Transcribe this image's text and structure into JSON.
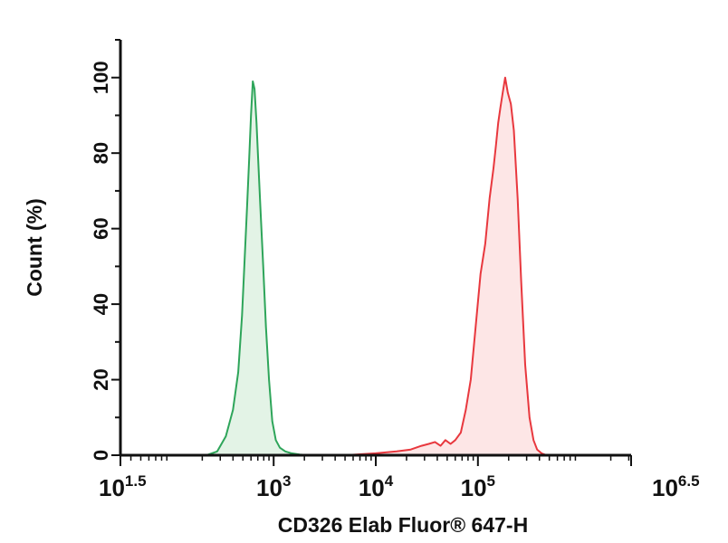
{
  "chart_data": {
    "type": "area",
    "xlabel": "CD326 Elab Fluor® 647-H",
    "ylabel": "Count (%)",
    "xscale": "log",
    "xlim": [
      31.6,
      3162000
    ],
    "ylim": [
      0,
      110
    ],
    "grid": false,
    "legend": "none",
    "x_ticks": [
      {
        "base": "10",
        "exp": "1.5",
        "value": 31.6
      },
      {
        "base": "10",
        "exp": "3",
        "value": 1000
      },
      {
        "base": "10",
        "exp": "4",
        "value": 10000
      },
      {
        "base": "10",
        "exp": "5",
        "value": 100000
      },
      {
        "base": "10",
        "exp": "6.5",
        "value": 3162000
      }
    ],
    "y_ticks": [
      {
        "label": "0",
        "value": 0
      },
      {
        "label": "20",
        "value": 20
      },
      {
        "label": "40",
        "value": 40
      },
      {
        "label": "60",
        "value": 60
      },
      {
        "label": "80",
        "value": 80
      },
      {
        "label": "100",
        "value": 100
      }
    ],
    "series": [
      {
        "color": "#2ea55a",
        "fill": "#e3f3e6",
        "x": [
          220,
          280,
          340,
          400,
          450,
          490,
          520,
          550,
          575,
          600,
          625,
          650,
          680,
          700,
          740,
          790,
          840,
          900,
          970,
          1050,
          1150,
          1300,
          1500,
          1800,
          2200
        ],
        "y": [
          0,
          1,
          5,
          12,
          22,
          37,
          52,
          66,
          78,
          90,
          99,
          97,
          88,
          80,
          66,
          50,
          34,
          20,
          9,
          4,
          2,
          1,
          0.5,
          0.2,
          0
        ]
      },
      {
        "color": "#e8383e",
        "fill": "#fde6e6",
        "x": [
          5000,
          10000,
          16000,
          22000,
          28000,
          33000,
          38000,
          43000,
          48000,
          54000,
          60000,
          68000,
          76000,
          85000,
          95000,
          106000,
          118000,
          130000,
          142000,
          150000,
          158000,
          166000,
          175000,
          185000,
          196000,
          210000,
          225000,
          245000,
          265000,
          290000,
          320000,
          350000,
          380000,
          420000,
          470000
        ],
        "y": [
          0,
          0.5,
          1,
          1.5,
          2.5,
          3,
          3.5,
          2.5,
          4,
          3,
          4,
          6,
          12,
          20,
          34,
          48,
          56,
          68,
          76,
          82,
          88,
          92,
          96,
          100,
          96,
          93,
          86,
          68,
          46,
          24,
          10,
          4,
          1.5,
          0.5,
          0
        ]
      }
    ]
  }
}
